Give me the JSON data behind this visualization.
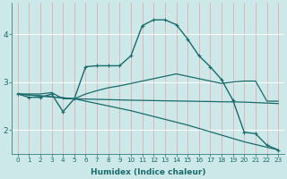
{
  "xlabel": "Humidex (Indice chaleur)",
  "bg_color": "#cce8e8",
  "line_color": "#1a6b6b",
  "red_grid_color": "#e8a0a0",
  "white_grid_color": "#ffffff",
  "xlim": [
    -0.5,
    23.5
  ],
  "ylim": [
    1.5,
    4.65
  ],
  "yticks": [
    2,
    3,
    4
  ],
  "xticks": [
    0,
    1,
    2,
    3,
    4,
    5,
    6,
    7,
    8,
    9,
    10,
    11,
    12,
    13,
    14,
    15,
    16,
    17,
    18,
    19,
    20,
    21,
    22,
    23
  ],
  "series": [
    {
      "x": [
        0,
        1,
        2,
        3,
        4,
        5,
        6,
        7,
        8,
        9,
        10,
        11,
        12,
        13,
        14,
        15,
        16,
        17,
        18,
        19,
        20,
        21,
        22,
        23
      ],
      "y": [
        2.75,
        2.68,
        2.68,
        2.75,
        2.38,
        2.65,
        3.32,
        3.34,
        3.34,
        3.34,
        3.55,
        4.18,
        4.3,
        4.3,
        4.2,
        3.9,
        3.55,
        3.32,
        3.05,
        2.62,
        1.95,
        1.92,
        1.68,
        1.58
      ],
      "marker": true,
      "lw": 1.0
    },
    {
      "x": [
        0,
        1,
        2,
        3,
        4,
        5,
        6,
        7,
        8,
        9,
        10,
        11,
        12,
        13,
        14,
        15,
        16,
        17,
        18,
        19,
        20,
        21,
        22,
        23
      ],
      "y": [
        2.75,
        2.75,
        2.75,
        2.78,
        2.65,
        2.65,
        2.75,
        2.82,
        2.88,
        2.92,
        2.97,
        3.02,
        3.07,
        3.12,
        3.17,
        3.12,
        3.07,
        3.02,
        2.97,
        3.0,
        3.02,
        3.02,
        2.6,
        2.6
      ],
      "marker": false,
      "lw": 0.9
    },
    {
      "x": [
        0,
        5,
        10,
        15,
        20,
        23
      ],
      "y": [
        2.75,
        2.65,
        2.4,
        2.1,
        1.75,
        1.58
      ],
      "marker": false,
      "lw": 0.9
    },
    {
      "x": [
        0,
        5,
        10,
        15,
        20,
        23
      ],
      "y": [
        2.75,
        2.65,
        2.62,
        2.6,
        2.58,
        2.55
      ],
      "marker": false,
      "lw": 0.9
    }
  ]
}
